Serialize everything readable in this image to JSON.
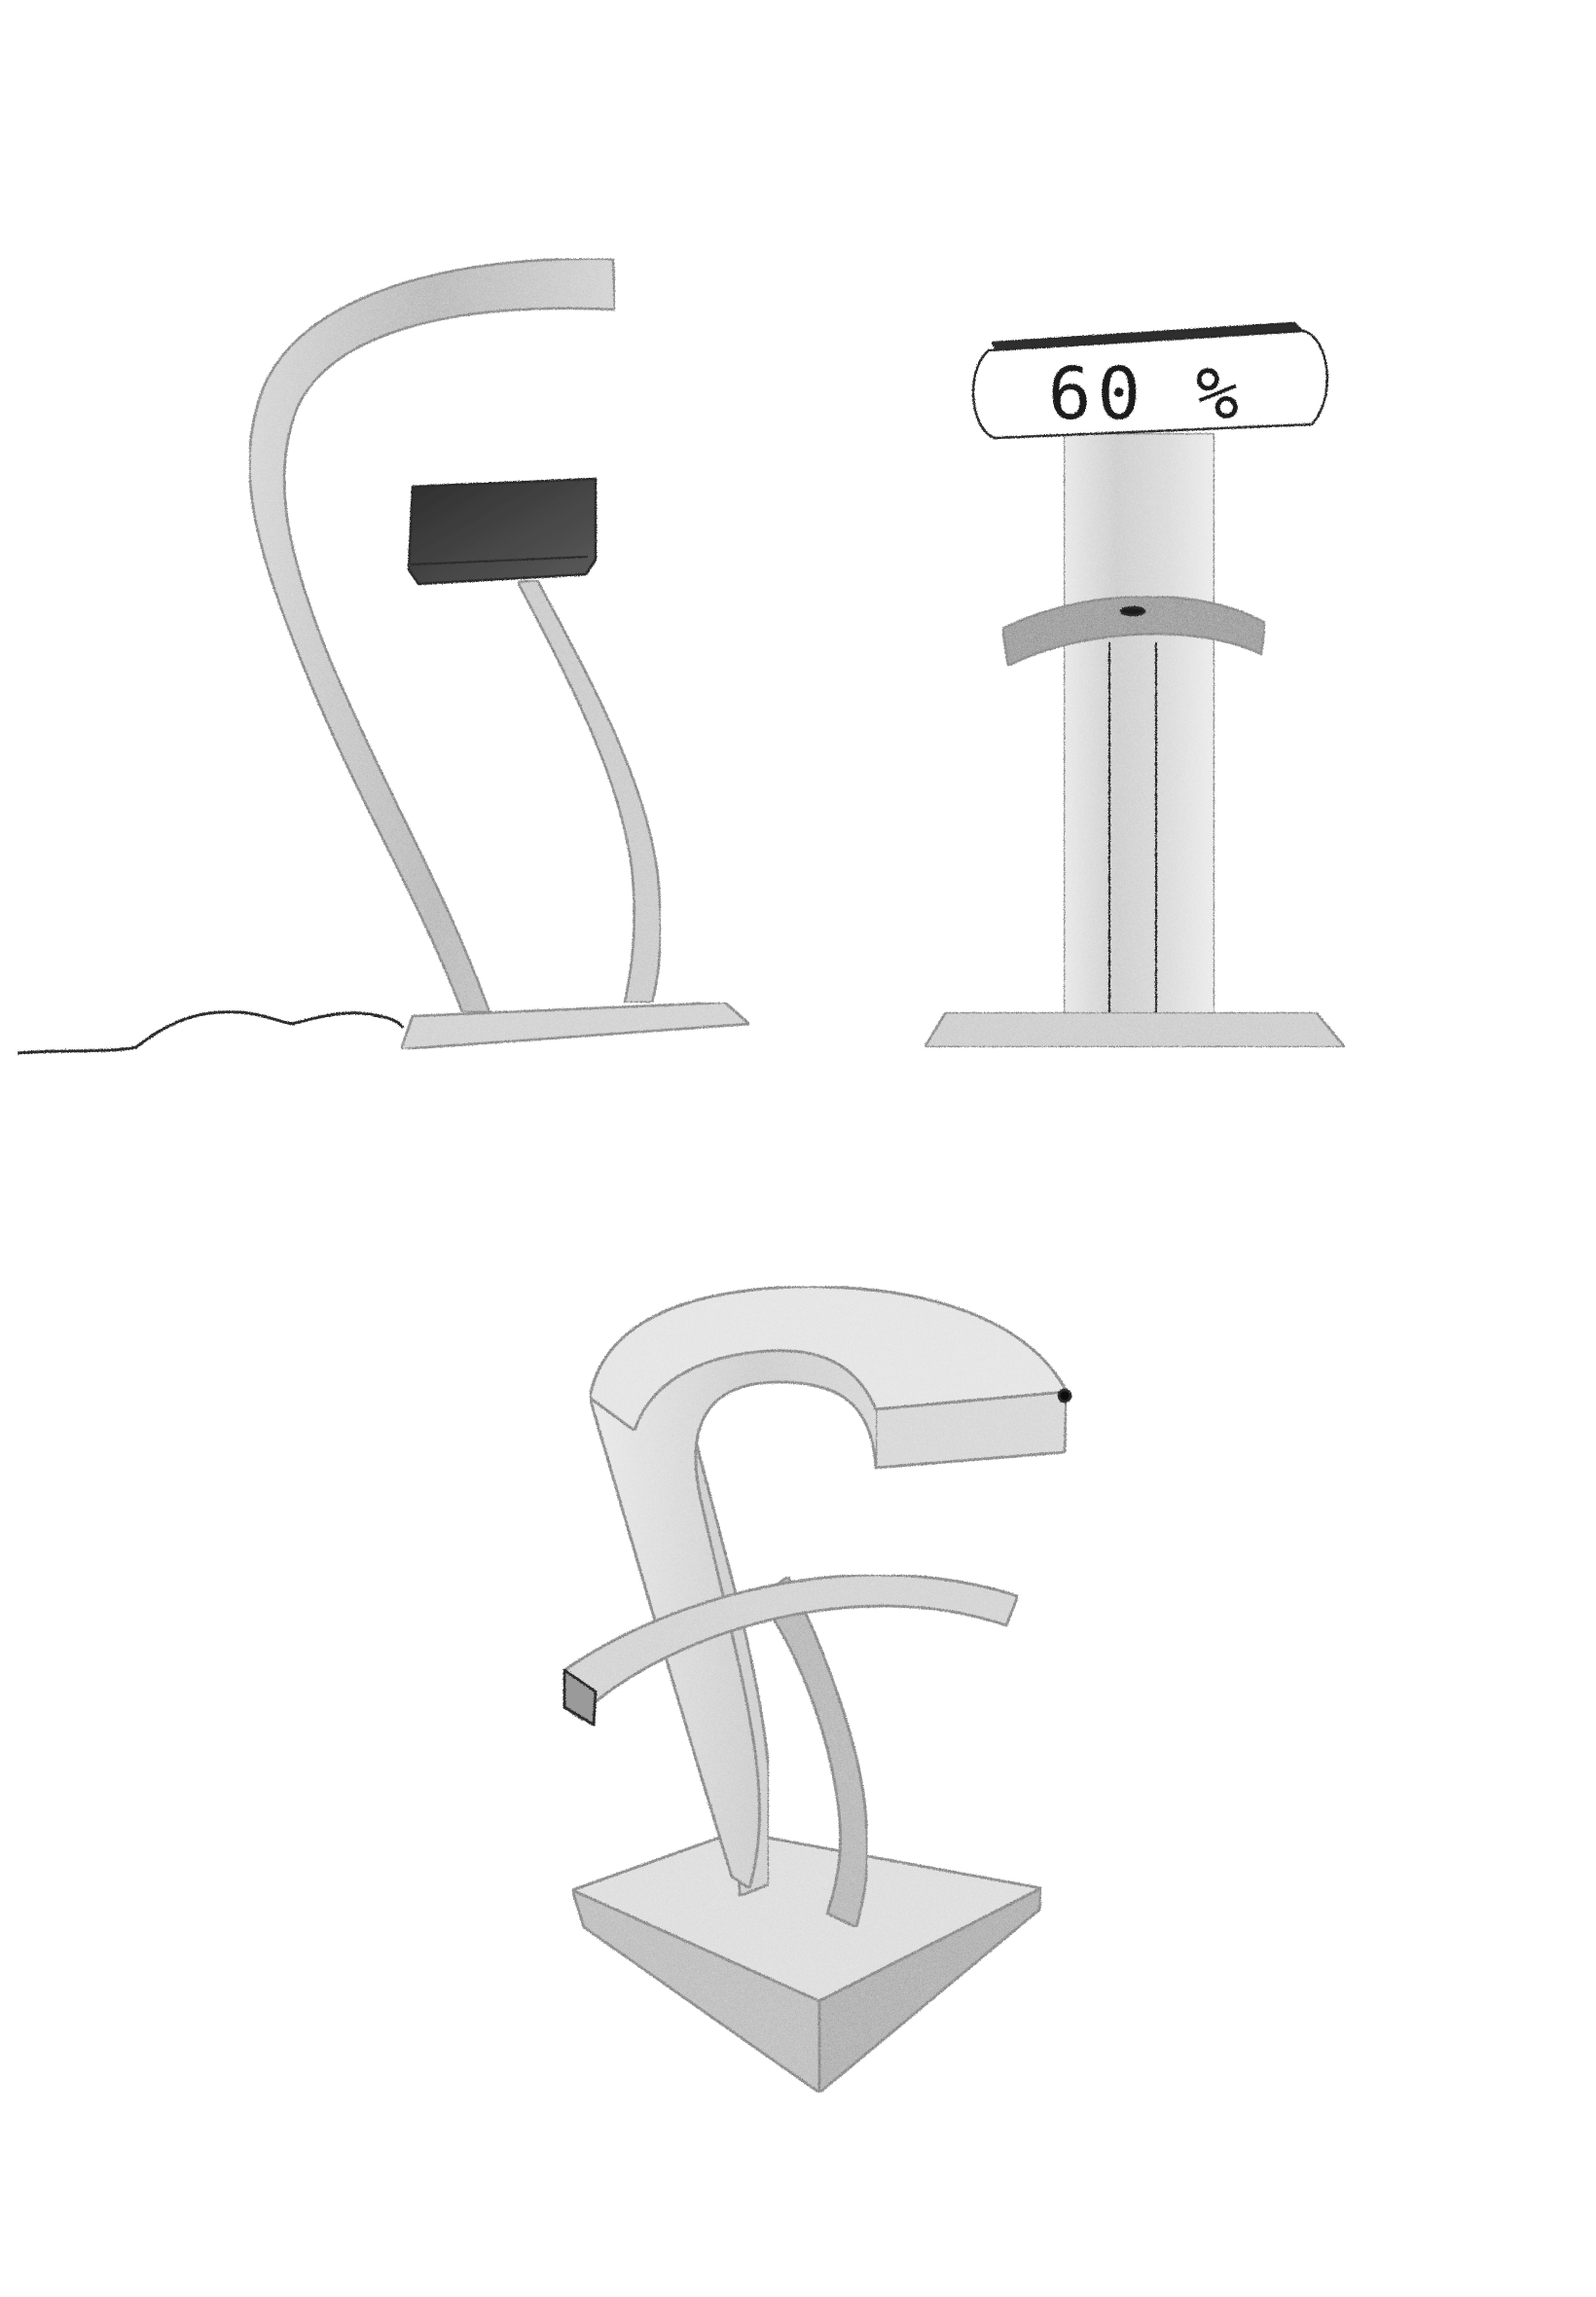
{
  "sheet": {
    "background": "#ffffff",
    "ink": "#2a2a2a",
    "shade_light": "#cfcfcf",
    "shade_mid": "#a9a9a9",
    "shade_dark": "#3a3a3a"
  },
  "sketches": [
    {
      "name": "curved-arm-lamp",
      "has_cable": true
    },
    {
      "name": "pillar-display-stand",
      "display": {
        "text": "60 %"
      }
    },
    {
      "name": "isometric-f-shaped-stand"
    }
  ]
}
